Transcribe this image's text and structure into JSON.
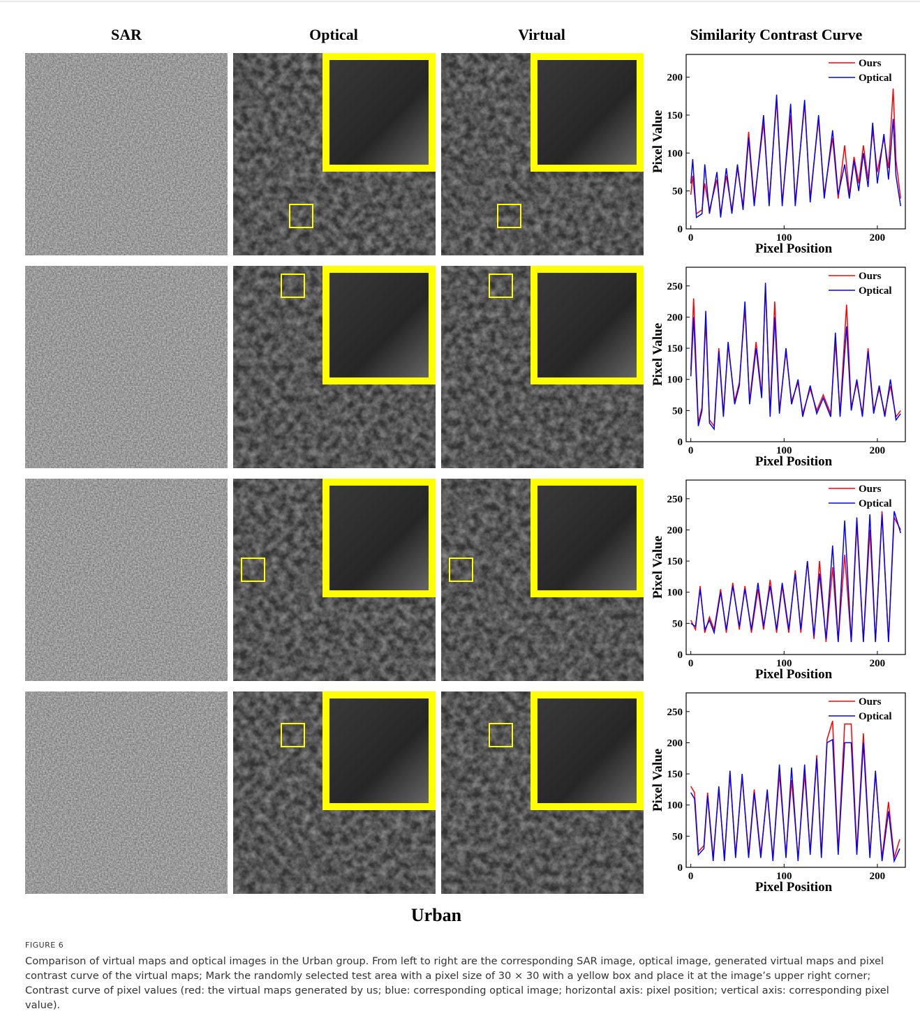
{
  "columns": [
    "SAR",
    "Optical",
    "Virtual",
    "Similarity Contrast Curve"
  ],
  "group_label": "Urban",
  "caption": {
    "label": "FIGURE 6",
    "text": "Comparison of virtual maps and optical images in the Urban group. From left to right are the corresponding SAR image, optical image, generated virtual maps and pixel contrast curve of the virtual maps; Mark the randomly selected test area with a pixel size of 30 × 30 with a yellow box and place it at the image’s upper right corner; Contrast curve of pixel values (red: the virtual maps generated by us; blue: corresponding optical image; horizontal axis: pixel position; vertical axis: corresponding pixel value)."
  },
  "chart_data": [
    {
      "type": "line",
      "xlabel": "Pixel Position",
      "ylabel": "Pixel Value",
      "xlim": [
        -5,
        230
      ],
      "xticks": [
        0,
        100,
        200
      ],
      "ylim": [
        0,
        230
      ],
      "yticks": [
        0,
        50,
        100,
        150,
        200
      ],
      "legend": "upper-right",
      "x": [
        0,
        2,
        6,
        12,
        15,
        20,
        28,
        32,
        38,
        44,
        50,
        56,
        62,
        68,
        78,
        84,
        92,
        98,
        107,
        112,
        122,
        128,
        137,
        143,
        152,
        158,
        165,
        170,
        175,
        180,
        185,
        190,
        195,
        200,
        207,
        212,
        217,
        220,
        225
      ],
      "series": [
        {
          "name": "Ours",
          "color": "#ff0000",
          "values": [
            45,
            70,
            20,
            25,
            60,
            25,
            65,
            20,
            70,
            25,
            80,
            30,
            128,
            35,
            140,
            35,
            170,
            35,
            150,
            35,
            165,
            40,
            145,
            45,
            120,
            40,
            110,
            45,
            95,
            60,
            110,
            65,
            130,
            75,
            120,
            80,
            185,
            90,
            40
          ]
        },
        {
          "name": "Optical",
          "color": "#0000ff",
          "values": [
            60,
            92,
            15,
            20,
            85,
            20,
            75,
            15,
            80,
            20,
            85,
            25,
            120,
            30,
            150,
            30,
            177,
            30,
            165,
            30,
            170,
            35,
            150,
            40,
            130,
            45,
            85,
            40,
            90,
            50,
            100,
            55,
            140,
            60,
            125,
            65,
            145,
            70,
            30
          ]
        }
      ]
    },
    {
      "type": "line",
      "xlabel": "Pixel Position",
      "ylabel": "Pixel Value",
      "xlim": [
        -5,
        230
      ],
      "xticks": [
        0,
        100,
        200
      ],
      "ylim": [
        0,
        280
      ],
      "yticks": [
        0,
        50,
        100,
        150,
        200,
        250
      ],
      "legend": "upper-right",
      "x": [
        0,
        3,
        8,
        12,
        16,
        20,
        25,
        30,
        35,
        40,
        47,
        52,
        58,
        63,
        70,
        76,
        80,
        85,
        90,
        95,
        102,
        108,
        115,
        120,
        128,
        135,
        142,
        150,
        155,
        160,
        167,
        172,
        178,
        184,
        190,
        196,
        202,
        208,
        214,
        220,
        225
      ],
      "series": [
        {
          "name": "Ours",
          "color": "#ff0000",
          "values": [
            115,
            230,
            30,
            55,
            195,
            35,
            25,
            150,
            45,
            155,
            65,
            95,
            215,
            65,
            160,
            75,
            250,
            45,
            225,
            50,
            145,
            65,
            95,
            45,
            85,
            50,
            75,
            45,
            160,
            45,
            220,
            55,
            95,
            45,
            150,
            50,
            85,
            45,
            90,
            40,
            50
          ]
        },
        {
          "name": "Optical",
          "color": "#0000ff",
          "values": [
            105,
            200,
            25,
            50,
            210,
            30,
            20,
            145,
            40,
            160,
            60,
            90,
            225,
            60,
            150,
            70,
            255,
            40,
            200,
            45,
            150,
            60,
            100,
            40,
            90,
            45,
            70,
            40,
            175,
            40,
            185,
            50,
            100,
            40,
            145,
            45,
            90,
            40,
            100,
            35,
            45
          ]
        }
      ]
    },
    {
      "type": "line",
      "xlabel": "Pixel Position",
      "ylabel": "Pixel Value",
      "xlim": [
        -5,
        230
      ],
      "xticks": [
        0,
        100,
        200
      ],
      "ylim": [
        0,
        280
      ],
      "yticks": [
        0,
        50,
        100,
        150,
        200,
        250
      ],
      "legend": "upper-right",
      "x": [
        0,
        5,
        10,
        15,
        20,
        25,
        32,
        38,
        45,
        52,
        58,
        65,
        72,
        78,
        85,
        92,
        98,
        105,
        112,
        118,
        125,
        132,
        138,
        145,
        152,
        158,
        165,
        172,
        178,
        185,
        192,
        198,
        205,
        212,
        218,
        225
      ],
      "series": [
        {
          "name": "Ours",
          "color": "#ff0000",
          "values": [
            55,
            40,
            110,
            35,
            60,
            40,
            105,
            35,
            115,
            40,
            110,
            35,
            105,
            40,
            120,
            35,
            110,
            35,
            135,
            35,
            150,
            25,
            150,
            20,
            140,
            20,
            160,
            20,
            210,
            20,
            200,
            20,
            230,
            20,
            220,
            200
          ]
        },
        {
          "name": "Optical",
          "color": "#0000ff",
          "values": [
            50,
            45,
            105,
            40,
            55,
            35,
            100,
            40,
            110,
            45,
            105,
            40,
            115,
            45,
            110,
            40,
            115,
            40,
            130,
            40,
            150,
            30,
            130,
            25,
            175,
            20,
            215,
            20,
            220,
            20,
            225,
            20,
            225,
            20,
            230,
            195
          ]
        }
      ]
    },
    {
      "type": "line",
      "xlabel": "Pixel Position",
      "ylabel": "Pixel Value",
      "xlim": [
        -5,
        230
      ],
      "xticks": [
        0,
        100,
        200
      ],
      "ylim": [
        0,
        280
      ],
      "yticks": [
        0,
        50,
        100,
        150,
        200,
        250
      ],
      "legend": "upper-right",
      "x": [
        0,
        4,
        8,
        14,
        18,
        24,
        30,
        36,
        42,
        48,
        55,
        62,
        68,
        75,
        82,
        88,
        95,
        102,
        108,
        115,
        122,
        128,
        135,
        140,
        146,
        152,
        158,
        165,
        172,
        178,
        185,
        192,
        198,
        205,
        212,
        218,
        224
      ],
      "series": [
        {
          "name": "Ours",
          "color": "#ff0000",
          "values": [
            130,
            120,
            25,
            35,
            120,
            15,
            125,
            15,
            150,
            20,
            145,
            20,
            125,
            20,
            120,
            15,
            150,
            20,
            140,
            15,
            150,
            25,
            180,
            20,
            205,
            235,
            25,
            230,
            230,
            25,
            215,
            20,
            150,
            15,
            105,
            15,
            45
          ]
        },
        {
          "name": "Optical",
          "color": "#0000ff",
          "values": [
            120,
            110,
            20,
            30,
            115,
            10,
            130,
            10,
            155,
            15,
            150,
            15,
            120,
            15,
            125,
            10,
            165,
            15,
            160,
            10,
            165,
            20,
            175,
            15,
            200,
            205,
            20,
            200,
            200,
            20,
            200,
            15,
            155,
            10,
            90,
            10,
            30
          ]
        }
      ]
    }
  ]
}
